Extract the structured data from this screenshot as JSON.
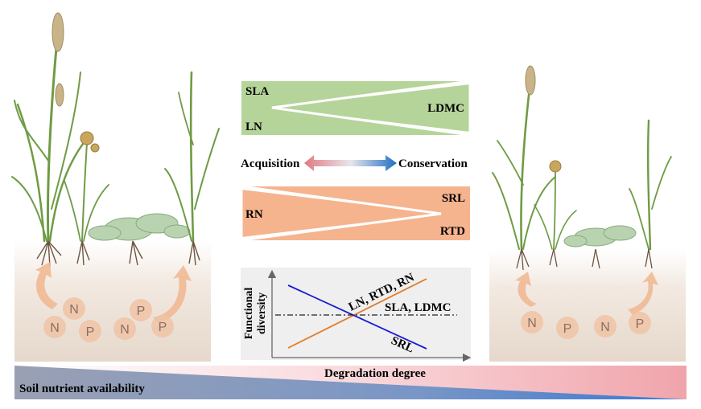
{
  "traits": {
    "above": {
      "left_top": "SLA",
      "left_bottom": "LN",
      "right": "LDMC"
    },
    "below": {
      "left": "RN",
      "right_top": "SRL",
      "right_bottom": "RTD"
    }
  },
  "strategy_axis": {
    "left": "Acquisition",
    "right": "Conservation"
  },
  "inset": {
    "ylabel_line1": "Functional",
    "ylabel_line2": "diversity",
    "labels": {
      "increasing": "LN, RTD, RN",
      "flat": "SLA, LDMC",
      "decreasing": "SRL"
    }
  },
  "nutrients": {
    "left": [
      "N",
      "N",
      "P",
      "N",
      "P",
      "P"
    ],
    "right": [
      "N",
      "P",
      "N",
      "P"
    ]
  },
  "bottom_bar": {
    "degradation_label": "Degradation degree",
    "soil_label": "Soil nutrient availability"
  },
  "colors": {
    "green_panel": "#b5d49a",
    "orange_panel": "#f5b48e",
    "acquisition": "#e17a80",
    "conservation": "#1f6fc2",
    "increasing_line": "#e07b2a",
    "decreasing_line": "#1a1ad6",
    "soil": "#e9ddd2",
    "nutrient_circle": "#f0c3a6"
  }
}
